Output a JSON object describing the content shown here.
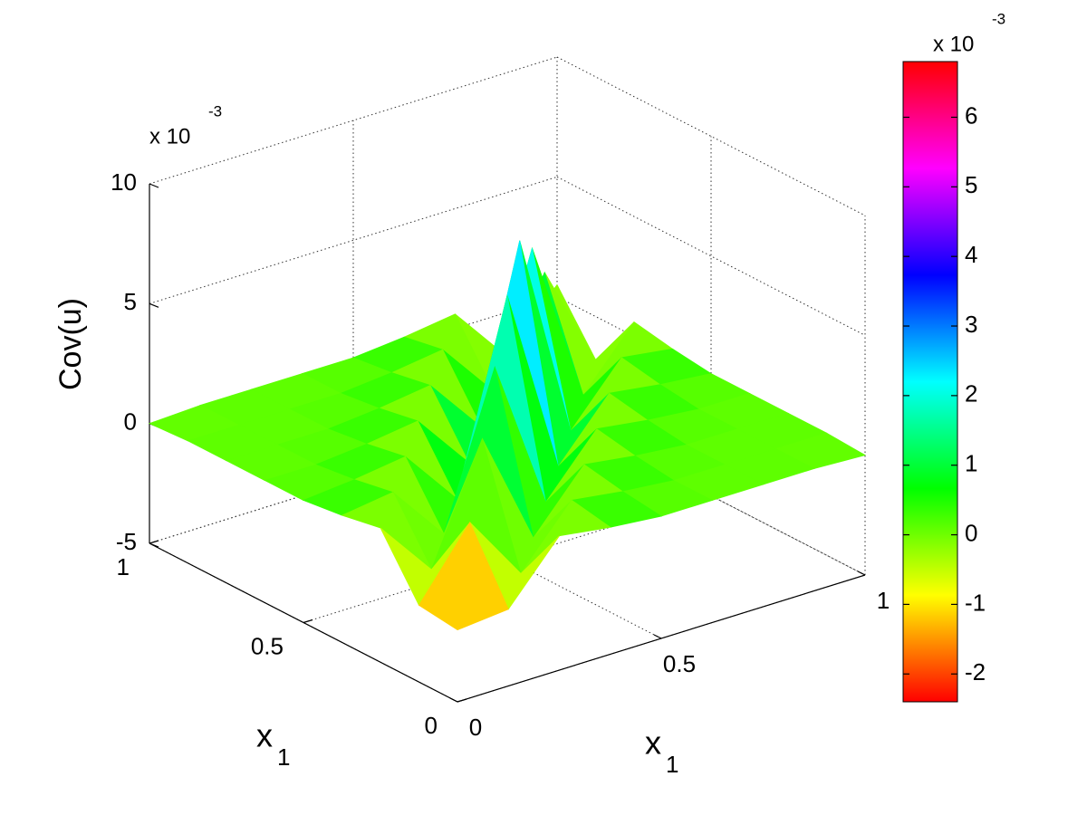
{
  "chart_data": {
    "type": "surface",
    "zlabel": "Cov(u)",
    "xlabel": {
      "text": "x",
      "sub": "1"
    },
    "ylabel": {
      "text": "x",
      "sub": "1"
    },
    "z_multiplier": {
      "base": "x 10",
      "exponent": "-3"
    },
    "x": [
      0,
      0.125,
      0.25,
      0.375,
      0.5,
      0.625,
      0.75,
      0.875,
      1
    ],
    "y": [
      0,
      0.125,
      0.25,
      0.375,
      0.5,
      0.625,
      0.75,
      0.875,
      1
    ],
    "z": [
      [
        -2,
        -1.8,
        0.6,
        0.3,
        0.1,
        0.1,
        0.1,
        0.1,
        0
      ],
      [
        -1.8,
        1,
        -1.8,
        0.6,
        0.3,
        0.1,
        0.1,
        0.1,
        0.1
      ],
      [
        0.6,
        -1.8,
        3,
        -1.8,
        0.6,
        0.3,
        0.1,
        0.1,
        0.1
      ],
      [
        0.3,
        0.6,
        -1.8,
        4.5,
        -1.8,
        0.6,
        0.3,
        0.1,
        0.1
      ],
      [
        0.1,
        0.3,
        0.6,
        -1.8,
        6,
        -1.8,
        0.6,
        0.3,
        0.1
      ],
      [
        0.1,
        0.1,
        0.3,
        0.6,
        -1.8,
        6.8,
        -1.8,
        0.6,
        0.3
      ],
      [
        0.1,
        0.1,
        0.1,
        0.3,
        0.6,
        -1.8,
        5,
        -1.8,
        0.6
      ],
      [
        0.1,
        0.1,
        0.1,
        0.1,
        0.3,
        0.6,
        -1.8,
        2.5,
        -1.8
      ],
      [
        0,
        0.1,
        0.1,
        0.1,
        0.1,
        0.3,
        0.6,
        -1.8,
        0.5
      ]
    ],
    "xlim": [
      0,
      1
    ],
    "xticks": [
      0,
      0.5,
      1
    ],
    "ylim": [
      0,
      1
    ],
    "yticks": [
      0,
      0.5,
      1
    ],
    "zlim": [
      -5,
      10
    ],
    "zticks": [
      -5,
      0,
      5,
      10
    ],
    "grid": true,
    "colormap": "hsv",
    "colorbar": {
      "clim": [
        -2.4,
        6.8
      ],
      "ticks": [
        -2,
        -1,
        0,
        1,
        2,
        3,
        4,
        5,
        6
      ],
      "multiplier": {
        "base": "x 10",
        "exponent": "-3"
      }
    }
  }
}
